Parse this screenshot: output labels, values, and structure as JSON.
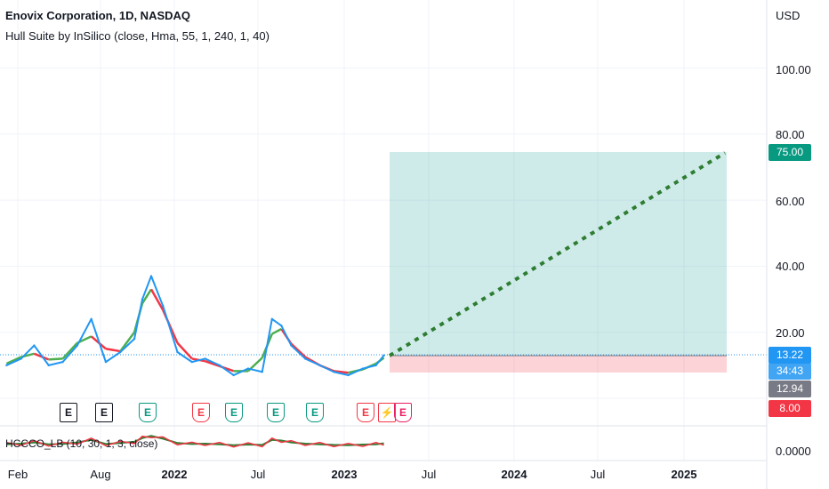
{
  "legend": {
    "title": "Enovix Corporation, 1D, NASDAQ",
    "indicator": "Hull Suite by InSilico (close, Hma, 55, 1, 240, 1, 40)",
    "oscillator": "HCCCO_LB (10, 30, 1, 3, close)"
  },
  "price_axis": {
    "currency": "USD",
    "ticks": [
      "100.00",
      "80.00",
      "60.00",
      "40.00",
      "20.00"
    ],
    "osc_tick": "0.0000"
  },
  "tags": {
    "target": "75.00",
    "last_price": "13.22",
    "countdown": "34:43",
    "entry": "12.94",
    "stop": "8.00"
  },
  "time_axis": {
    "labels": [
      "Feb",
      "Aug",
      "2022",
      "Jul",
      "2023",
      "Jul",
      "2024",
      "Jul",
      "2025"
    ]
  },
  "events": [
    "E",
    "E",
    "E",
    "E",
    "E",
    "E",
    "E",
    "E",
    "⚡",
    "E"
  ],
  "colors": {
    "price_line": "#2196f3",
    "hull_up": "#4caf50",
    "hull_down": "#f23645",
    "profit_zone": "#26a69a",
    "loss_zone": "#f23645",
    "projection": "#2e7d32",
    "target_tag": "#089981",
    "last_tag": "#2196f3",
    "entry_tag": "#787b86",
    "stop_tag": "#f23645"
  },
  "chart_data": {
    "type": "line",
    "title": "Enovix Corporation, 1D, NASDAQ",
    "ylabel": "USD",
    "ylim": [
      0,
      115
    ],
    "series": [
      {
        "name": "",
        "x": [
          "2021-01-15",
          "2021-02-15",
          "2021-03-15",
          "2021-04-15",
          "2021-05-15",
          "2021-06-15",
          "2021-07-15",
          "2021-08-15",
          "2021-09-15",
          "2021-10-15",
          "2021-11-01",
          "2021-11-20",
          "2021-12-15",
          "2022-01-15",
          "2022-02-15",
          "2022-03-15",
          "2022-04-15",
          "2022-05-15",
          "2022-06-15",
          "2022-07-15",
          "2022-08-05",
          "2022-08-25",
          "2022-09-15",
          "2022-10-15",
          "2022-11-15",
          "2022-12-15",
          "2023-01-15",
          "2023-02-15",
          "2023-03-15",
          "2023-04-01"
        ],
        "values": [
          10,
          12,
          16,
          10,
          11,
          16,
          24,
          11,
          14,
          18,
          30,
          37,
          28,
          14,
          11,
          12,
          10,
          7,
          9,
          8,
          24,
          22,
          16,
          12,
          10,
          8,
          7,
          9,
          10,
          13
        ]
      }
    ]
  }
}
